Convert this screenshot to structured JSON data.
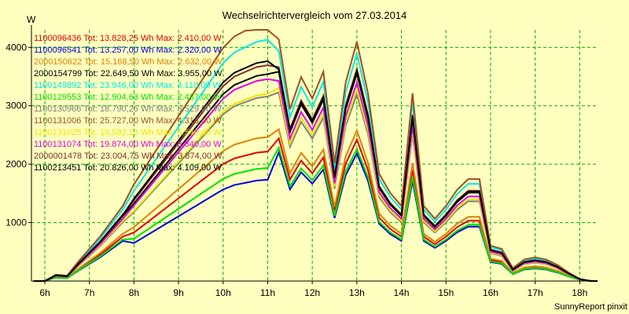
{
  "chart_data": {
    "type": "line",
    "title": "Wechselrichtervergleich vom 27.03.2014",
    "ylabel": "W",
    "xlabel": "",
    "footer": "SunnyReport pinxit",
    "x_ticks": [
      "6h",
      "7h",
      "8h",
      "9h",
      "10h",
      "11h",
      "12h",
      "13h",
      "14h",
      "15h",
      "16h",
      "17h",
      "18h"
    ],
    "y_ticks": [
      1000,
      2000,
      3000,
      4000
    ],
    "xlim": [
      5.7,
      18.4
    ],
    "ylim": [
      0,
      4300
    ],
    "grid": true,
    "legend_position": "top-left",
    "x": [
      5.75,
      6.0,
      6.25,
      6.5,
      6.75,
      7.0,
      7.25,
      7.5,
      7.75,
      8.0,
      8.25,
      8.5,
      8.75,
      9.0,
      9.25,
      9.5,
      9.75,
      10.0,
      10.25,
      10.5,
      10.75,
      11.0,
      11.25,
      11.5,
      11.75,
      12.0,
      12.25,
      12.5,
      12.75,
      13.0,
      13.25,
      13.5,
      13.75,
      14.0,
      14.25,
      14.5,
      14.75,
      15.0,
      15.25,
      15.5,
      15.75,
      16.0,
      16.25,
      16.5,
      16.75,
      17.0,
      17.25,
      17.5,
      17.75,
      18.0,
      18.25,
      18.4
    ],
    "series": [
      {
        "name": "1100096436",
        "legend": "1100096436 Tot: 13.828,25 Wh Max: 2.410,00 W",
        "color": "#e00000",
        "scale": 0.62,
        "valley": 0.9
      },
      {
        "name": "1100096541",
        "legend": "1100096541 Tot: 13.257,00 Wh Max: 2.320,00 W",
        "color": "#0000e0",
        "scale": 0.56,
        "valley": 0.78
      },
      {
        "name": "2000150622",
        "legend": "2000150622 Tot: 15.168,50 Wh Max: 2.632,00 W",
        "color": "#e08000",
        "scale": 0.66,
        "valley": 0.94
      },
      {
        "name": "2000154799",
        "legend": "2000154799 Tot: 22.649,50 Wh Max: 3.955,00 W",
        "color": "#000000",
        "scale": 0.91,
        "valley": 0.98
      },
      {
        "name": "1100149892",
        "legend": "1100149892 Tot: 23.946,00 Wh Max: 4.110,00 W",
        "color": "#00e8e8",
        "scale": 1.0,
        "valley": 1.04
      },
      {
        "name": "1100129553",
        "legend": "1100129553 Tot: 12.904,63 Wh Max: 2.487,00 W",
        "color": "#00e000",
        "scale": 0.58,
        "valley": 0.84
      },
      {
        "name": "1100130966",
        "legend": "1100130966 Tot: 18.790,25 Wh Max: 3.529,00 W",
        "color": "#808080",
        "scale": 0.82,
        "valley": 0.97
      },
      {
        "name": "1100131006",
        "legend": "1100131006 Tot: 25.727,00 Wh Max: 4.313,00 W",
        "color": "#a05020",
        "scale": 1.05,
        "valley": 1.06
      },
      {
        "name": "1100131025",
        "legend": "1100131025 Tot: 19.592,13 Wh Max: 3.540,00 W",
        "color": "#e8e800",
        "scale": 0.84,
        "valley": 0.96
      },
      {
        "name": "1100131074",
        "legend": "1100131074 Tot: 19.874,00 Wh Max: 3.840,00 W",
        "color": "#e000e0",
        "scale": 0.87,
        "valley": 1.0
      },
      {
        "name": "2000001478",
        "legend": "2000001478 Tot: 23.004,75 Wh Max: 3.874,00 W",
        "color": "#803030",
        "scale": 0.93,
        "valley": 1.0
      },
      {
        "name": "1100213451",
        "legend": "1100213451 Tot: 20.826,00 Wh Max: 4.109,00 W",
        "color": "#000000",
        "scale": 0.92,
        "valley": 1.03
      }
    ]
  }
}
